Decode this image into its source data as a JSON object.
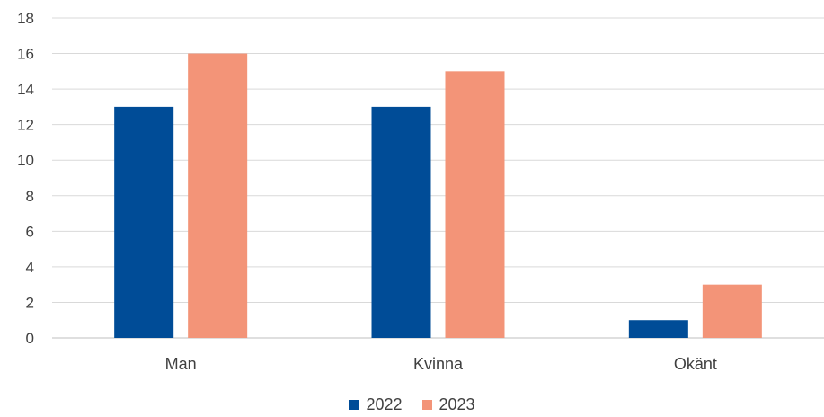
{
  "chart_data": {
    "type": "bar",
    "categories": [
      "Man",
      "Kvinna",
      "Okänt"
    ],
    "series": [
      {
        "name": "2022",
        "values": [
          13,
          13,
          1
        ],
        "color": "#004c97"
      },
      {
        "name": "2023",
        "values": [
          16,
          15,
          3
        ],
        "color": "#f39478"
      }
    ],
    "ylim": [
      0,
      18
    ],
    "yticks": [
      0,
      2,
      4,
      6,
      8,
      10,
      12,
      14,
      16,
      18
    ],
    "grid": true,
    "legend_position": "bottom"
  }
}
